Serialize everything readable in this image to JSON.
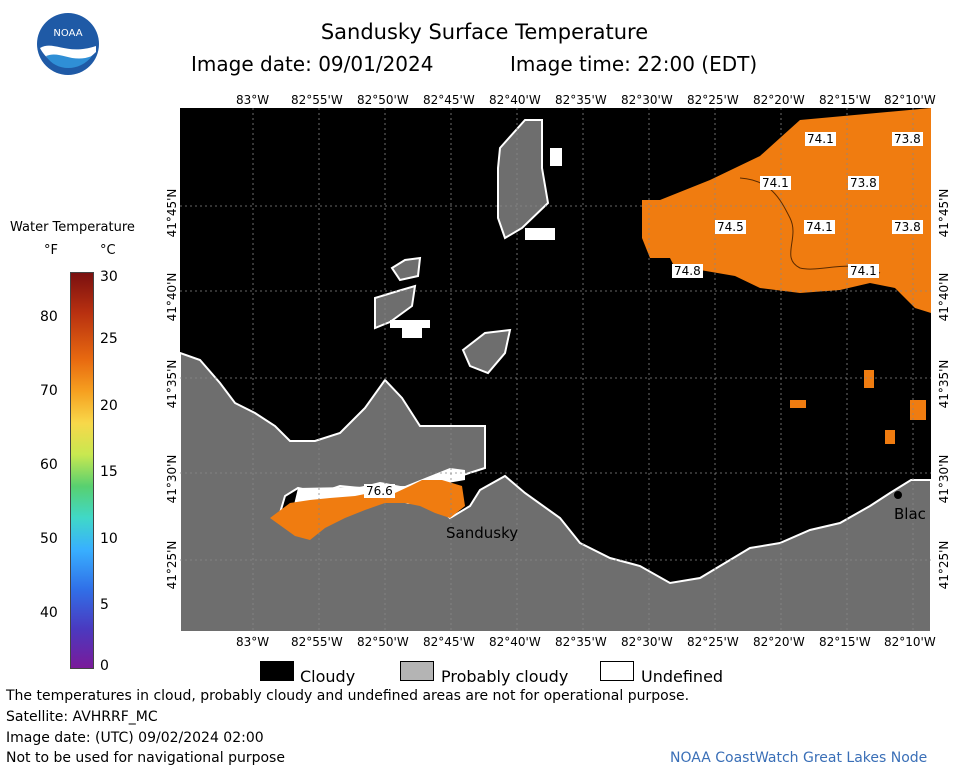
{
  "header": {
    "title": "Sandusky Surface Temperature",
    "image_date": "Image date: 09/01/2024",
    "image_time": "Image time: 22:00 (EDT)"
  },
  "logo": {
    "text": "NOAA"
  },
  "colorbar": {
    "title": "Water Temperature",
    "unit_f": "°F",
    "unit_c": "°C",
    "f_ticks": [
      "80",
      "70",
      "60",
      "50",
      "40"
    ],
    "c_ticks": [
      "30",
      "25",
      "20",
      "15",
      "10",
      "5",
      "0"
    ]
  },
  "map": {
    "lon_labels": [
      "83°W",
      "82°55'W",
      "82°50'W",
      "82°45'W",
      "82°40'W",
      "82°35'W",
      "82°30'W",
      "82°25'W",
      "82°20'W",
      "82°15'W",
      "82°10'W"
    ],
    "lat_labels": [
      "41°45'N",
      "41°40'N",
      "41°35'N",
      "41°30'N",
      "41°25'N"
    ],
    "temperature_labels": [
      "74.1",
      "73.8",
      "74.1",
      "73.8",
      "74.5",
      "74.1",
      "73.8",
      "74.8",
      "74.1",
      "76.6"
    ],
    "place_labels": [
      "Sandusky",
      "Blac"
    ]
  },
  "legend": {
    "cloudy": "Cloudy",
    "probably_cloudy": "Probably cloudy",
    "undefined": "Undefined"
  },
  "footer": {
    "note": "The temperatures in cloud, probably cloudy and undefined areas are not for operational purpose.",
    "satellite": "Satellite: AVHRRF_MC",
    "utc_date": "Image date: (UTC) 09/02/2024  02:00",
    "nav_warning": "Not to be used for navigational purpose",
    "credit": "NOAA CoastWatch Great Lakes Node"
  },
  "colors": {
    "cloudy": "#000000",
    "probably_cloudy": "#6e6e6e",
    "undefined": "#ffffff",
    "warm_water": "#f07c10"
  }
}
